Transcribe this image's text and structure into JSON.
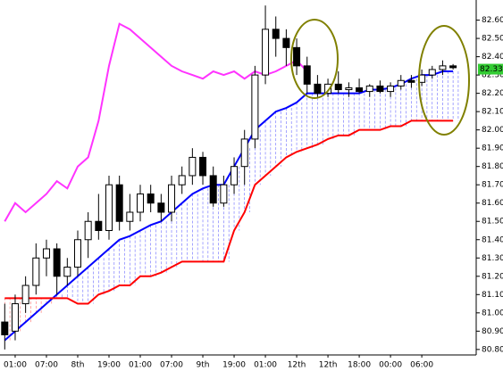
{
  "chart_data": {
    "type": "candlestick",
    "categories": [
      null,
      "01:00",
      null,
      null,
      "07:00",
      null,
      null,
      "8th",
      null,
      null,
      "19:00",
      null,
      null,
      "01:00",
      null,
      null,
      "07:00",
      null,
      null,
      "9th",
      null,
      null,
      "19:00",
      null,
      null,
      "01:00",
      null,
      null,
      "12th",
      null,
      null,
      "12th",
      null,
      null,
      "18:00",
      null,
      null,
      "00:00",
      null,
      null,
      "06:00",
      null,
      null,
      null
    ],
    "candles": {
      "open": [
        80.95,
        80.9,
        81.05,
        81.15,
        81.3,
        81.35,
        81.2,
        81.25,
        81.4,
        81.5,
        81.45,
        81.7,
        81.5,
        81.55,
        81.65,
        81.6,
        81.55,
        81.7,
        81.75,
        81.85,
        81.75,
        81.6,
        81.7,
        81.8,
        81.95,
        82.3,
        82.55,
        82.5,
        82.45,
        82.35,
        82.25,
        82.2,
        82.25,
        82.22,
        82.23,
        82.21,
        82.24,
        82.21,
        82.24,
        82.27,
        82.26,
        82.3,
        82.33,
        82.35
      ],
      "high": [
        81.05,
        81.1,
        81.2,
        81.38,
        81.4,
        81.38,
        81.3,
        81.45,
        81.55,
        81.65,
        81.75,
        81.75,
        81.65,
        81.7,
        81.7,
        81.65,
        81.75,
        81.8,
        81.9,
        81.88,
        81.8,
        81.75,
        81.85,
        82.0,
        82.35,
        82.68,
        82.62,
        82.55,
        82.5,
        82.4,
        82.3,
        82.28,
        82.32,
        82.26,
        82.28,
        82.25,
        82.27,
        82.26,
        82.3,
        82.3,
        82.33,
        82.35,
        82.38,
        82.36
      ],
      "low": [
        80.8,
        80.85,
        81.0,
        81.1,
        81.2,
        81.1,
        81.15,
        81.2,
        81.3,
        81.4,
        81.4,
        81.45,
        81.45,
        81.5,
        81.55,
        81.5,
        81.5,
        81.65,
        81.7,
        81.7,
        81.58,
        81.58,
        81.65,
        81.7,
        81.9,
        82.25,
        82.4,
        82.35,
        82.3,
        82.2,
        82.18,
        82.18,
        82.2,
        82.18,
        82.2,
        82.18,
        82.2,
        82.18,
        82.22,
        82.23,
        82.24,
        82.28,
        82.3,
        82.33
      ],
      "close": [
        80.88,
        81.05,
        81.15,
        81.3,
        81.35,
        81.2,
        81.25,
        81.4,
        81.5,
        81.45,
        81.7,
        81.5,
        81.55,
        81.65,
        81.6,
        81.55,
        81.7,
        81.75,
        81.85,
        81.75,
        81.6,
        81.7,
        81.8,
        81.95,
        82.3,
        82.55,
        82.5,
        82.45,
        82.35,
        82.25,
        82.2,
        82.25,
        82.22,
        82.23,
        82.21,
        82.24,
        82.21,
        82.24,
        82.27,
        82.26,
        82.3,
        82.33,
        82.35,
        82.34
      ]
    },
    "series": [
      {
        "color": "#0000ff",
        "values": [
          80.85,
          80.9,
          80.95,
          81.0,
          81.05,
          81.1,
          81.15,
          81.2,
          81.25,
          81.3,
          81.35,
          81.4,
          81.42,
          81.45,
          81.48,
          81.5,
          81.55,
          81.6,
          81.65,
          81.68,
          81.7,
          81.7,
          81.8,
          81.9,
          82.0,
          82.05,
          82.1,
          82.12,
          82.15,
          82.2,
          82.2,
          82.2,
          82.2,
          82.2,
          82.2,
          82.22,
          82.22,
          82.23,
          82.25,
          82.28,
          82.3,
          82.3,
          82.32,
          82.32
        ]
      },
      {
        "color": "#ff0000",
        "values": [
          81.08,
          81.08,
          81.08,
          81.08,
          81.08,
          81.08,
          81.08,
          81.05,
          81.05,
          81.1,
          81.12,
          81.15,
          81.15,
          81.2,
          81.2,
          81.22,
          81.25,
          81.28,
          81.28,
          81.28,
          81.28,
          81.28,
          81.45,
          81.55,
          81.7,
          81.75,
          81.8,
          81.85,
          81.88,
          81.9,
          81.92,
          81.95,
          81.97,
          81.97,
          82.0,
          82.0,
          82.0,
          82.02,
          82.02,
          82.05,
          82.05,
          82.05,
          82.05,
          82.05
        ]
      },
      {
        "color": "#ff33ff",
        "values": [
          81.5,
          81.6,
          81.55,
          81.6,
          81.65,
          81.72,
          81.68,
          81.8,
          81.85,
          82.05,
          82.35,
          82.58,
          82.55,
          82.5,
          82.45,
          82.4,
          82.35,
          82.32,
          82.3,
          82.28,
          82.32,
          82.3,
          82.32,
          82.28,
          82.32,
          82.3,
          82.32,
          82.35,
          82.38,
          82.32,
          null,
          null,
          null,
          null,
          null,
          null,
          null,
          null,
          null,
          null,
          null,
          null,
          null,
          null
        ]
      }
    ],
    "ylim": [
      80.77,
      82.71
    ],
    "yticks": [
      {
        "value": 80.8,
        "label": "80.800"
      },
      {
        "value": 80.9,
        "label": "80.900"
      },
      {
        "value": 81.0,
        "label": "81.000"
      },
      {
        "value": 81.1,
        "label": "81.100"
      },
      {
        "value": 81.2,
        "label": "81.200"
      },
      {
        "value": 81.3,
        "label": "81.300"
      },
      {
        "value": 81.4,
        "label": "81.400"
      },
      {
        "value": 81.5,
        "label": "81.500"
      },
      {
        "value": 81.6,
        "label": "81.600"
      },
      {
        "value": 81.7,
        "label": "81.700"
      },
      {
        "value": 81.8,
        "label": "81.800"
      },
      {
        "value": 81.9,
        "label": "81.900"
      },
      {
        "value": 82.0,
        "label": "82.000"
      },
      {
        "value": 82.1,
        "label": "82.100"
      },
      {
        "value": 82.2,
        "label": "82.200"
      },
      {
        "value": 82.3,
        "label": "82.300"
      },
      {
        "value": 82.4,
        "label": "82.400"
      },
      {
        "value": 82.5,
        "label": "82.500"
      },
      {
        "value": 82.6,
        "label": "82.600"
      }
    ],
    "price_marker": 82.332
  }
}
